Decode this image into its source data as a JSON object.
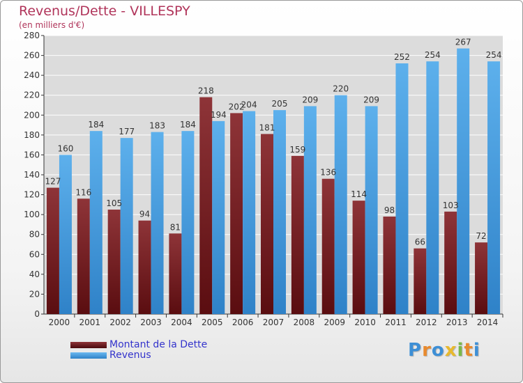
{
  "page": {
    "title": "Revenus/Dette - VILLESPY",
    "subtitle": "(en milliers d'€)"
  },
  "colors": {
    "dette": "#7a1f22",
    "revenus": "#4fa3e3",
    "axis": "#333333",
    "grid": "#ffffff",
    "title": "#b0345a",
    "legend_text": "#3333cc"
  },
  "logo": {
    "letters": [
      {
        "ch": "P",
        "color": "#3d8fd6"
      },
      {
        "ch": "r",
        "color": "#e88a2e"
      },
      {
        "ch": "o",
        "color": "#3d8fd6"
      },
      {
        "ch": "x",
        "color": "#e8b92e"
      },
      {
        "ch": "i",
        "color": "#79b84a"
      },
      {
        "ch": "t",
        "color": "#e88a2e"
      },
      {
        "ch": "i",
        "color": "#3d8fd6"
      }
    ]
  },
  "chart_data": {
    "type": "bar",
    "categories": [
      "2000",
      "2001",
      "2002",
      "2003",
      "2004",
      "2005",
      "2006",
      "2007",
      "2008",
      "2009",
      "2010",
      "2011",
      "2012",
      "2013",
      "2014"
    ],
    "series": [
      {
        "name": "Montant de la Dette",
        "values": [
          127,
          116,
          105,
          94,
          81,
          218,
          202,
          181,
          159,
          136,
          114,
          98,
          66,
          103,
          72
        ]
      },
      {
        "name": "Revenus",
        "values": [
          160,
          184,
          177,
          183,
          184,
          194,
          204,
          205,
          209,
          220,
          209,
          252,
          254,
          267,
          254
        ]
      }
    ],
    "title": "Revenus/Dette - VILLESPY",
    "ylabel": "(en milliers d'€)",
    "xlabel": "",
    "ylim": [
      0,
      280
    ],
    "yticks": [
      0,
      20,
      40,
      60,
      80,
      100,
      120,
      140,
      160,
      180,
      200,
      220,
      240,
      260,
      280
    ],
    "grid": true,
    "legend_position": "bottom-left"
  }
}
